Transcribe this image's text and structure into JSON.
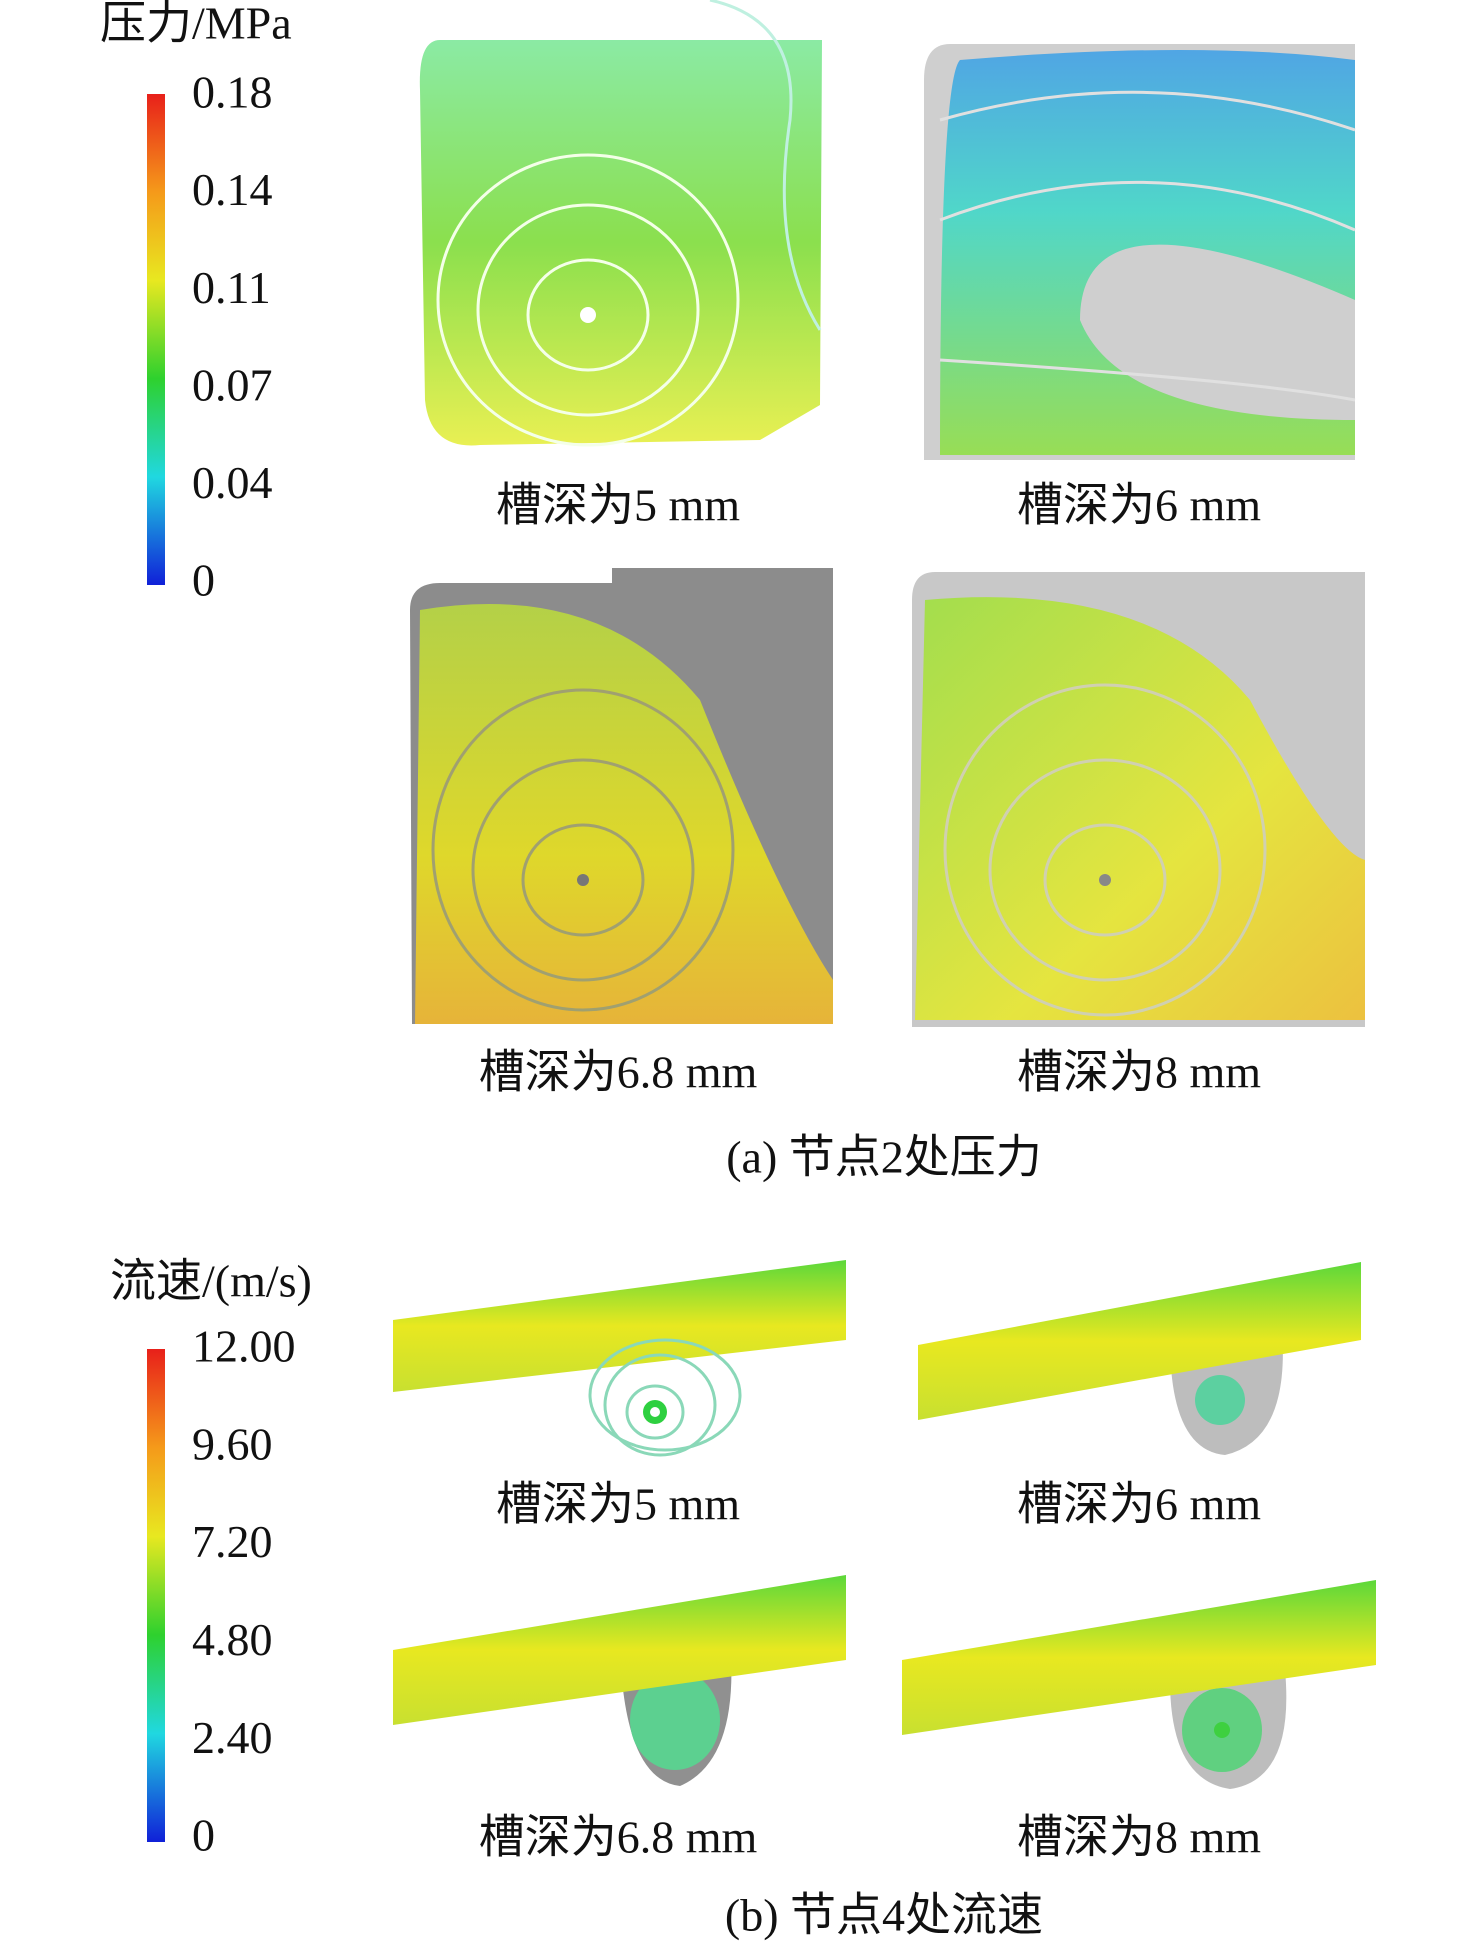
{
  "panels": [
    {
      "colorbar": {
        "title": "压力/MPa",
        "ticks": [
          "0.18",
          "0.14",
          "0.11",
          "0.07",
          "0.04",
          "0"
        ]
      },
      "images": [
        {
          "caption": "槽深为5 mm"
        },
        {
          "caption": "槽深为6 mm"
        },
        {
          "caption": "槽深为6.8 mm"
        },
        {
          "caption": "槽深为8 mm"
        }
      ],
      "caption": "(a) 节点2处压力"
    },
    {
      "colorbar": {
        "title": "流速/(m/s)",
        "ticks": [
          "12.00",
          "9.60",
          "7.20",
          "4.80",
          "2.40",
          "0"
        ]
      },
      "images": [
        {
          "caption": "槽深为5 mm"
        },
        {
          "caption": "槽深为6 mm"
        },
        {
          "caption": "槽深为6.8 mm"
        },
        {
          "caption": "槽深为8 mm"
        }
      ],
      "caption": "(b) 节点4处流速"
    }
  ]
}
